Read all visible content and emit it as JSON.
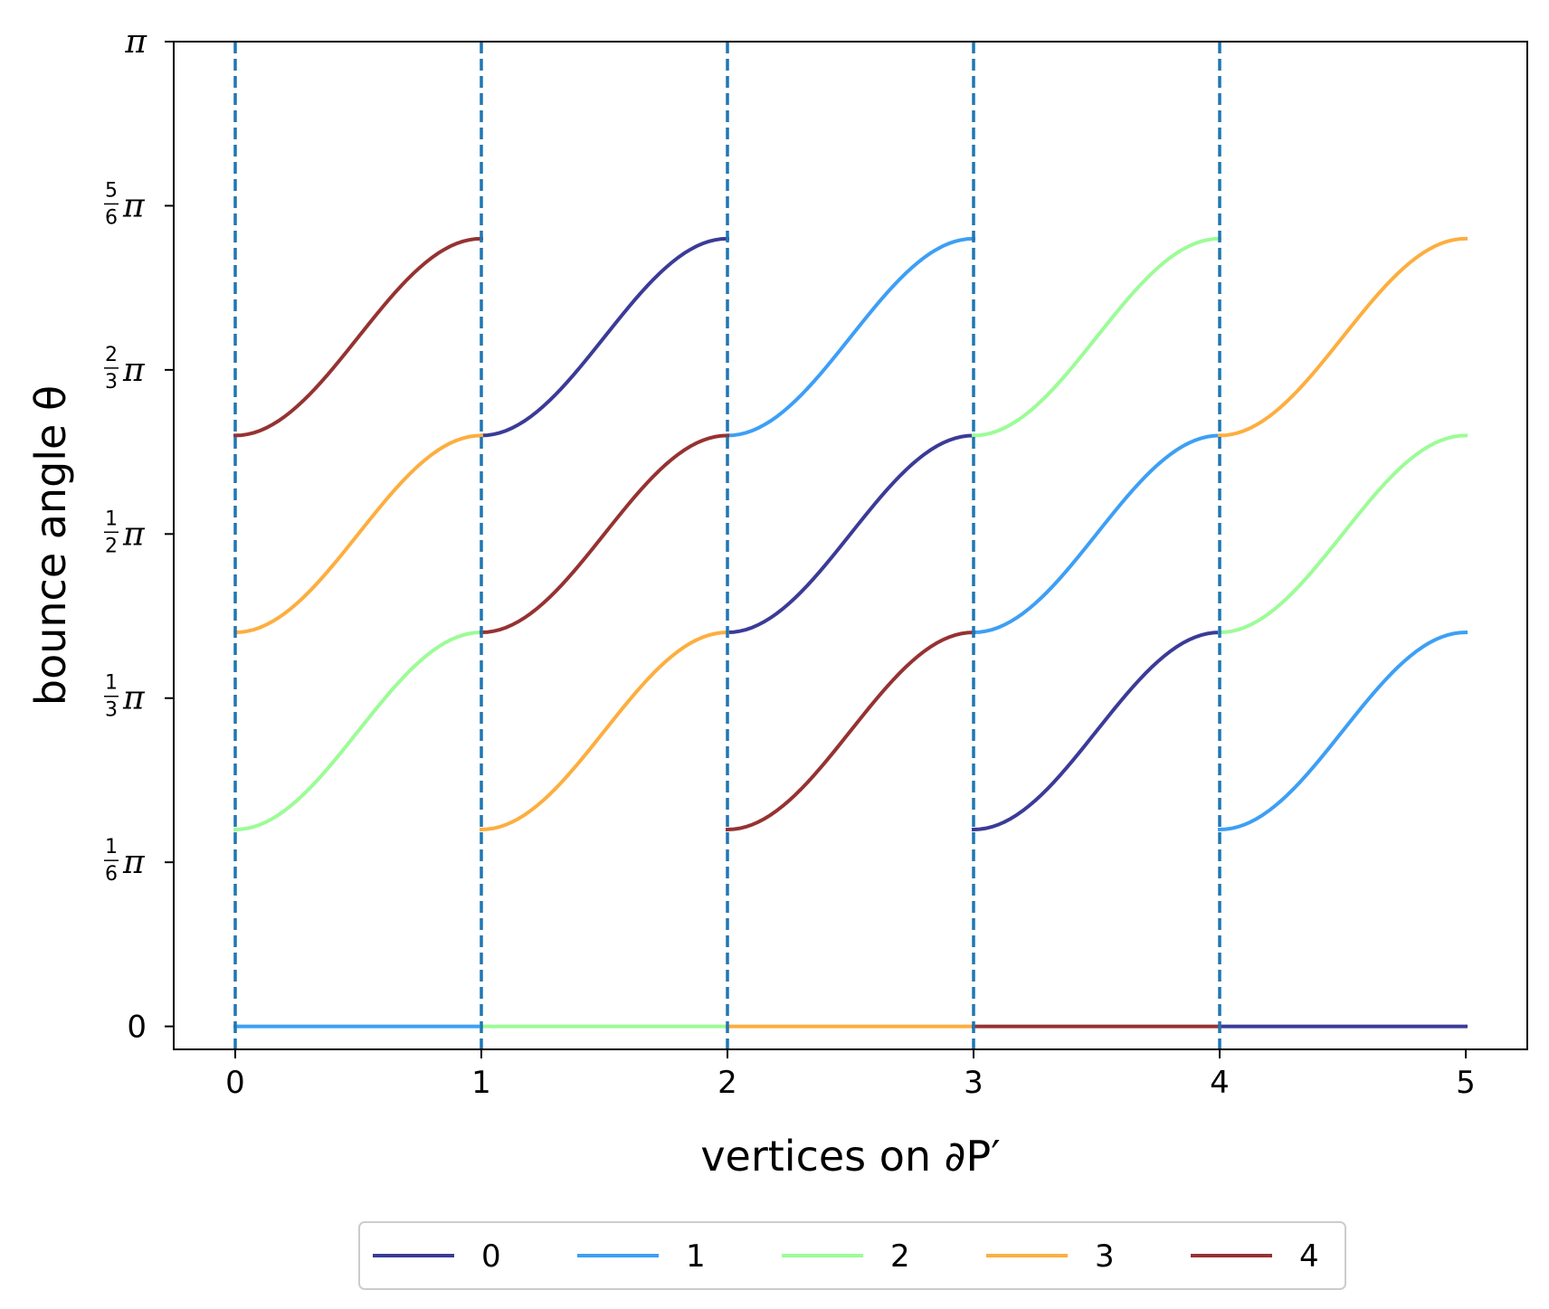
{
  "chart_data": {
    "type": "line",
    "xlabel": "vertices on ∂P′",
    "ylabel": "bounce angle θ",
    "xlim": [
      -0.25,
      5.25
    ],
    "ylim": [
      -0.0733,
      3.1416
    ],
    "x_ticks": [
      {
        "value": 0,
        "label": "0"
      },
      {
        "value": 1,
        "label": "1"
      },
      {
        "value": 2,
        "label": "2"
      },
      {
        "value": 3,
        "label": "3"
      },
      {
        "value": 4,
        "label": "4"
      },
      {
        "value": 5,
        "label": "5"
      }
    ],
    "y_ticks": [
      {
        "value": 0,
        "label": "0"
      },
      {
        "value": 0.5236,
        "label": "1/6 π",
        "num": "1",
        "den": "6"
      },
      {
        "value": 1.0472,
        "label": "1/3 π",
        "num": "1",
        "den": "3"
      },
      {
        "value": 1.5708,
        "label": "1/2 π",
        "num": "1",
        "den": "2"
      },
      {
        "value": 2.0944,
        "label": "2/3 π",
        "num": "2",
        "den": "3"
      },
      {
        "value": 2.618,
        "label": "5/6 π",
        "num": "5",
        "den": "6"
      },
      {
        "value": 3.1416,
        "label": "π"
      }
    ],
    "pi_symbol": "π",
    "vertical_lines": [
      0,
      1,
      2,
      3,
      4
    ],
    "vertical_line_color": "#1f77b4",
    "legend": {
      "placement": "bottom-center, below axes",
      "columns": 5
    },
    "segment_shapes": {
      "flat": {
        "y0": 0.0,
        "y1": 0.0
      },
      "low": {
        "y0": 0.628,
        "y1": 1.257
      },
      "mid": {
        "y0": 1.257,
        "y1": 1.885
      },
      "high": {
        "y0": 1.885,
        "y1": 2.513
      }
    },
    "series": [
      {
        "name": "0",
        "color": "#3b3b98",
        "segments": [
          {
            "interval": [
              1,
              2
            ],
            "shape": "high"
          },
          {
            "interval": [
              2,
              3
            ],
            "shape": "mid"
          },
          {
            "interval": [
              3,
              4
            ],
            "shape": "low"
          },
          {
            "interval": [
              4,
              5
            ],
            "shape": "flat"
          }
        ]
      },
      {
        "name": "1",
        "color": "#3d9ff5",
        "segments": [
          {
            "interval": [
              0,
              1
            ],
            "shape": "flat"
          },
          {
            "interval": [
              2,
              3
            ],
            "shape": "high"
          },
          {
            "interval": [
              3,
              4
            ],
            "shape": "mid"
          },
          {
            "interval": [
              4,
              5
            ],
            "shape": "low"
          }
        ]
      },
      {
        "name": "2",
        "color": "#9cfc97",
        "segments": [
          {
            "interval": [
              0,
              1
            ],
            "shape": "low"
          },
          {
            "interval": [
              1,
              2
            ],
            "shape": "flat"
          },
          {
            "interval": [
              3,
              4
            ],
            "shape": "high"
          },
          {
            "interval": [
              4,
              5
            ],
            "shape": "mid"
          }
        ]
      },
      {
        "name": "3",
        "color": "#fdae3f",
        "segments": [
          {
            "interval": [
              0,
              1
            ],
            "shape": "mid"
          },
          {
            "interval": [
              1,
              2
            ],
            "shape": "low"
          },
          {
            "interval": [
              2,
              3
            ],
            "shape": "flat"
          },
          {
            "interval": [
              4,
              5
            ],
            "shape": "high"
          }
        ]
      },
      {
        "name": "4",
        "color": "#963232",
        "segments": [
          {
            "interval": [
              0,
              1
            ],
            "shape": "high"
          },
          {
            "interval": [
              1,
              2
            ],
            "shape": "mid"
          },
          {
            "interval": [
              2,
              3
            ],
            "shape": "low"
          },
          {
            "interval": [
              3,
              4
            ],
            "shape": "flat"
          }
        ]
      }
    ]
  }
}
